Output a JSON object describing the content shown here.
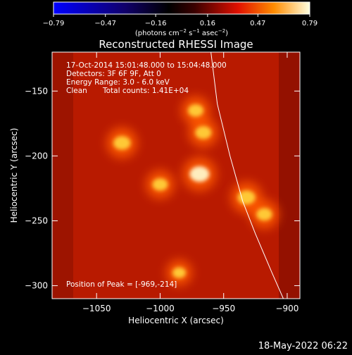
{
  "chart_data": {
    "type": "heatmap",
    "title": "Reconstructed RHESSI Image",
    "xlabel": "Heliocentric X (arcsec)",
    "ylabel": "Heliocentric Y (arcsec)",
    "xlim": [
      -1085,
      -890
    ],
    "ylim": [
      -310,
      -120
    ],
    "xticks": [
      -1050,
      -1000,
      -950,
      -900
    ],
    "xtick_labels": [
      "−1050",
      "−1000",
      "−950",
      "−900"
    ],
    "yticks": [
      -150,
      -200,
      -250,
      -300
    ],
    "ytick_labels": [
      "−150",
      "−200",
      "−250",
      "−300"
    ],
    "colorbar": {
      "range": [
        -0.79,
        0.79
      ],
      "tick_values": [
        -0.79,
        -0.47,
        -0.16,
        0.16,
        0.47,
        0.79
      ],
      "tick_labels": [
        "−0.79",
        "−0.47",
        "−0.16",
        "0.16",
        "0.47",
        "0.79"
      ],
      "unit_main": "(photons cm",
      "unit_sup1": "−2",
      "unit_mid1": " s",
      "unit_sup2": "−1",
      "unit_mid2": " asec",
      "unit_sup3": "−2",
      "unit_end": ")"
    },
    "annotations": {
      "line1": "17-Oct-2014 15:01:48.000 to 15:04:48.000",
      "line2": "Detectors: 3F 6F 9F, Att 0",
      "line3": "Energy Range: 3.0 - 6.0 keV",
      "line4a": "Clean",
      "line4b": "Total counts: 1.41E+04",
      "peak": "Position of Peak = [-969,-214]"
    },
    "sources": [
      {
        "x": -969,
        "y": -214,
        "value": 0.79
      },
      {
        "x": -1030,
        "y": -190,
        "value": 0.62
      },
      {
        "x": -932,
        "y": -232,
        "value": 0.66
      },
      {
        "x": -966,
        "y": -182,
        "value": 0.55
      },
      {
        "x": -972,
        "y": -165,
        "value": 0.5
      },
      {
        "x": -1000,
        "y": -222,
        "value": 0.5
      },
      {
        "x": -918,
        "y": -245,
        "value": 0.52
      },
      {
        "x": -985,
        "y": -290,
        "value": 0.35
      }
    ],
    "limb": [
      {
        "x": -960,
        "y": -120
      },
      {
        "x": -955,
        "y": -160
      },
      {
        "x": -945,
        "y": -200
      },
      {
        "x": -935,
        "y": -235
      },
      {
        "x": -925,
        "y": -260
      },
      {
        "x": -912,
        "y": -290
      },
      {
        "x": -903,
        "y": -310
      }
    ]
  },
  "footer": {
    "date": "18-May-2022 06:22"
  }
}
